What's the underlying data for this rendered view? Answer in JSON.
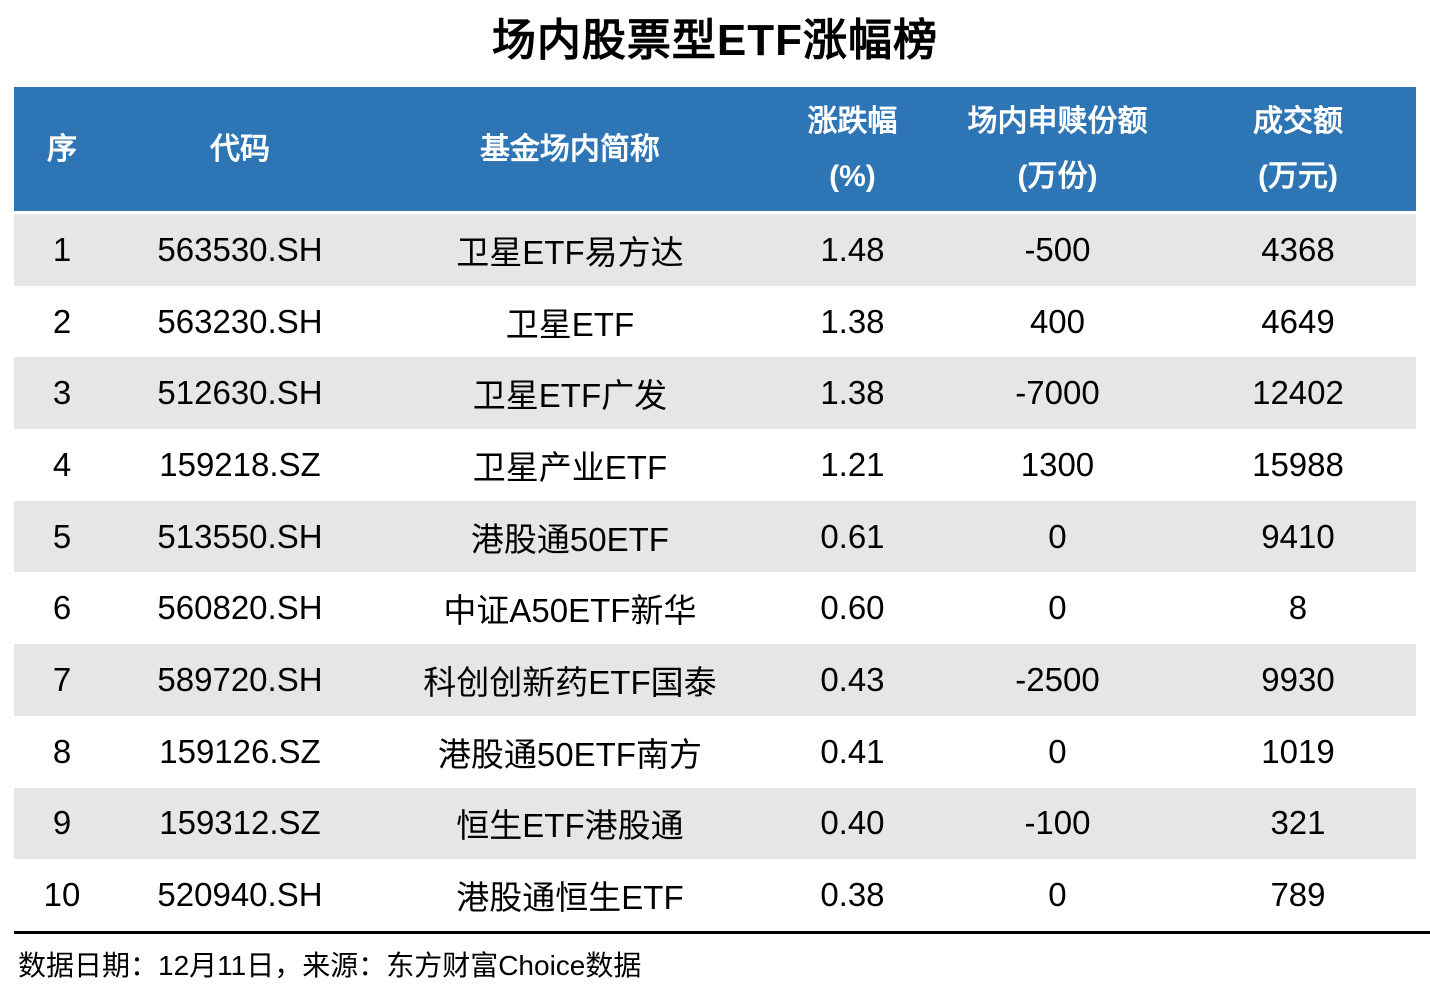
{
  "page": {
    "title": "场内股票型ETF涨幅榜",
    "footer": "数据日期：12月11日，来源：东方财富Choice数据"
  },
  "colors": {
    "header_bg": "#2E75B6",
    "header_text": "#FFFFFF",
    "row_alt_bg": "#E7E6E6",
    "row_bg": "#FFFFFF",
    "body_text": "#000000",
    "divider": "#000000"
  },
  "chart_data": {
    "type": "table",
    "title": "场内股票型ETF涨幅榜",
    "source_note": "数据日期：12月11日，来源：东方财富Choice数据",
    "columns": [
      {
        "key": "rank",
        "label": "序",
        "unit": ""
      },
      {
        "key": "code",
        "label": "代码",
        "unit": ""
      },
      {
        "key": "name",
        "label": "基金场内简称",
        "unit": ""
      },
      {
        "key": "change_pct",
        "label": "涨跌幅",
        "unit": "(%)"
      },
      {
        "key": "flow",
        "label": "场内申赎份额",
        "unit": "(万份)"
      },
      {
        "key": "turnover",
        "label": "成交额",
        "unit": "(万元)"
      }
    ],
    "rows": [
      [
        "1",
        "563530.SH",
        "卫星ETF易方达",
        "1.48",
        "-500",
        "4368"
      ],
      [
        "2",
        "563230.SH",
        "卫星ETF",
        "1.38",
        "400",
        "4649"
      ],
      [
        "3",
        "512630.SH",
        "卫星ETF广发",
        "1.38",
        "-7000",
        "12402"
      ],
      [
        "4",
        "159218.SZ",
        "卫星产业ETF",
        "1.21",
        "1300",
        "15988"
      ],
      [
        "5",
        "513550.SH",
        "港股通50ETF",
        "0.61",
        "0",
        "9410"
      ],
      [
        "6",
        "560820.SH",
        "中证A50ETF新华",
        "0.60",
        "0",
        "8"
      ],
      [
        "7",
        "589720.SH",
        "科创创新药ETF国泰",
        "0.43",
        "-2500",
        "9930"
      ],
      [
        "8",
        "159126.SZ",
        "港股通50ETF南方",
        "0.41",
        "0",
        "1019"
      ],
      [
        "9",
        "159312.SZ",
        "恒生ETF港股通",
        "0.40",
        "-100",
        "321"
      ],
      [
        "10",
        "520940.SH",
        "港股通恒生ETF",
        "0.38",
        "0",
        "789"
      ]
    ]
  }
}
